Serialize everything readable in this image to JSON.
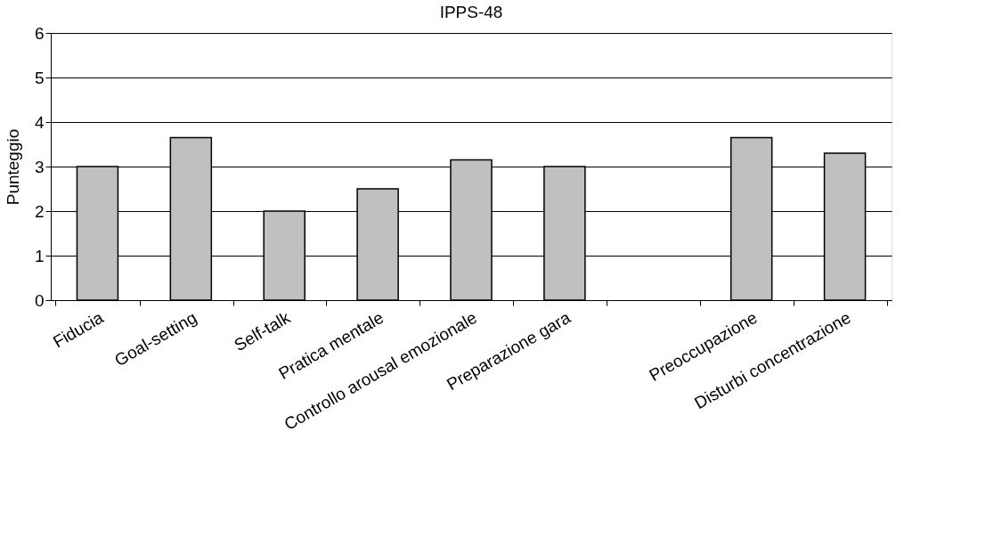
{
  "chart_data": {
    "type": "bar",
    "title": "IPPS-48",
    "ylabel": "Punteggio",
    "categories": [
      "Fiducia",
      "Goal-setting",
      "Self-talk",
      "Pratica mentale",
      "Controllo arousal emozionale",
      "Preparazione gara",
      null,
      "Preoccupazione",
      "Disturbi concentrazione"
    ],
    "values": [
      3,
      3.65,
      2,
      2.5,
      3.15,
      3,
      null,
      3.65,
      3.3
    ],
    "color": "#c0c0c0",
    "ylim": [
      0,
      6
    ],
    "yticks": [
      0,
      1,
      2,
      3,
      4,
      5,
      6
    ],
    "grid": "y"
  }
}
